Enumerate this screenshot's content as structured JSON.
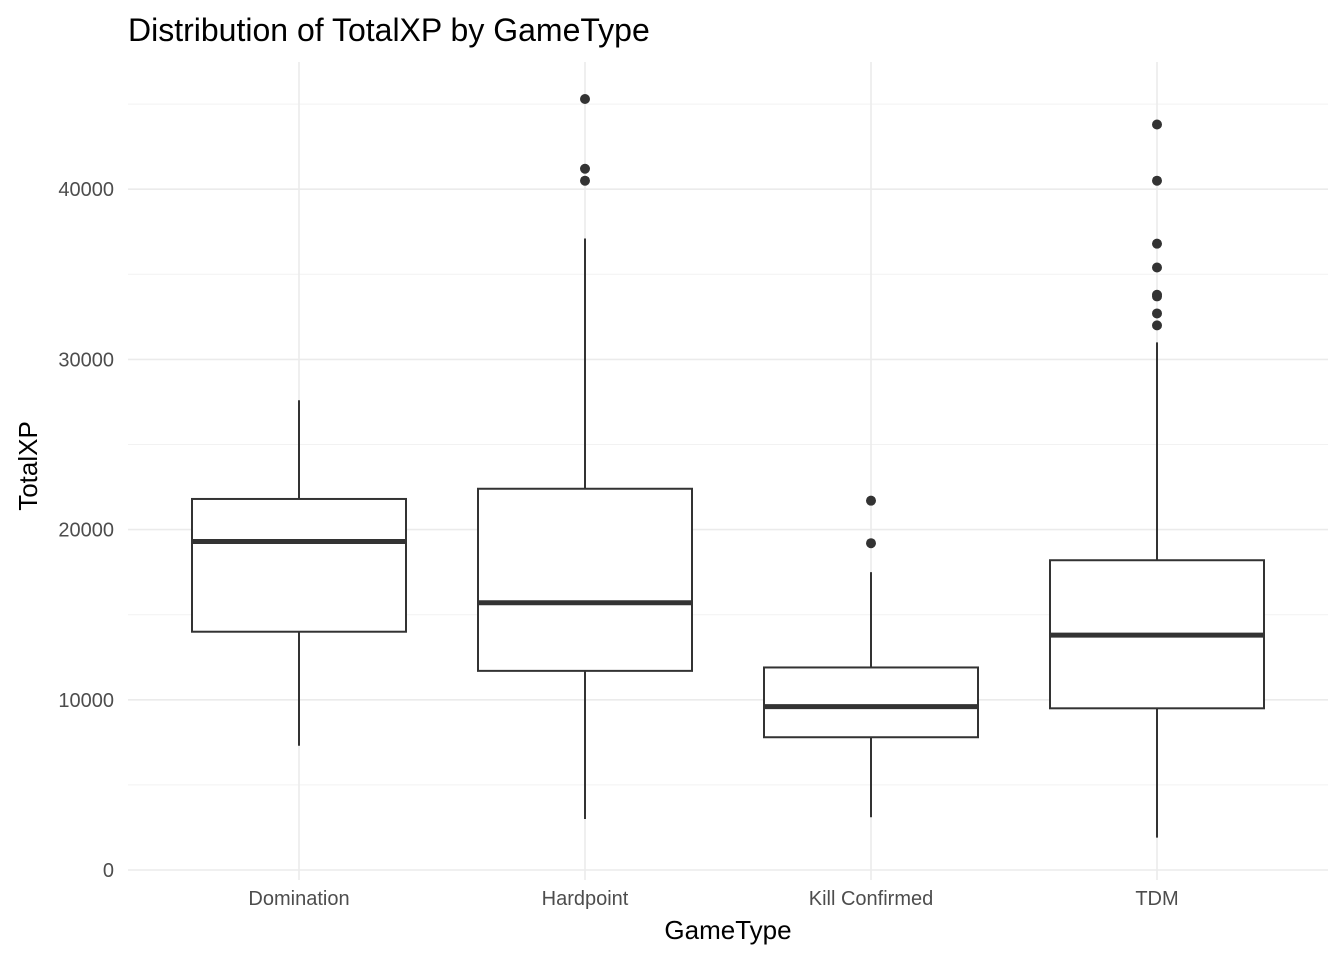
{
  "chart_data": {
    "type": "boxplot",
    "title": "Distribution of TotalXP by GameType",
    "xlabel": "GameType",
    "ylabel": "TotalXP",
    "ylim": [
      -400,
      46500
    ],
    "y_ticks": [
      0,
      10000,
      20000,
      30000,
      40000
    ],
    "y_tick_labels": [
      "0",
      "10000",
      "20000",
      "30000",
      "40000"
    ],
    "grid": true,
    "legend": "none",
    "categories": [
      "Domination",
      "Hardpoint",
      "Kill Confirmed",
      "TDM"
    ],
    "boxes": [
      {
        "category": "Domination",
        "whisker_low": 7300,
        "q1": 14000,
        "median": 19300,
        "q3": 21800,
        "whisker_high": 27600,
        "outliers": []
      },
      {
        "category": "Hardpoint",
        "whisker_low": 3000,
        "q1": 11700,
        "median": 15700,
        "q3": 22400,
        "whisker_high": 37100,
        "outliers": [
          40500,
          41200,
          45300
        ]
      },
      {
        "category": "Kill Confirmed",
        "whisker_low": 3100,
        "q1": 7800,
        "median": 9600,
        "q3": 11900,
        "whisker_high": 17500,
        "outliers": [
          19200,
          21700
        ]
      },
      {
        "category": "TDM",
        "whisker_low": 1900,
        "q1": 9500,
        "median": 13800,
        "q3": 18200,
        "whisker_high": 31000,
        "outliers": [
          32000,
          32700,
          33700,
          33800,
          35400,
          36800,
          40500,
          43800
        ]
      }
    ]
  }
}
